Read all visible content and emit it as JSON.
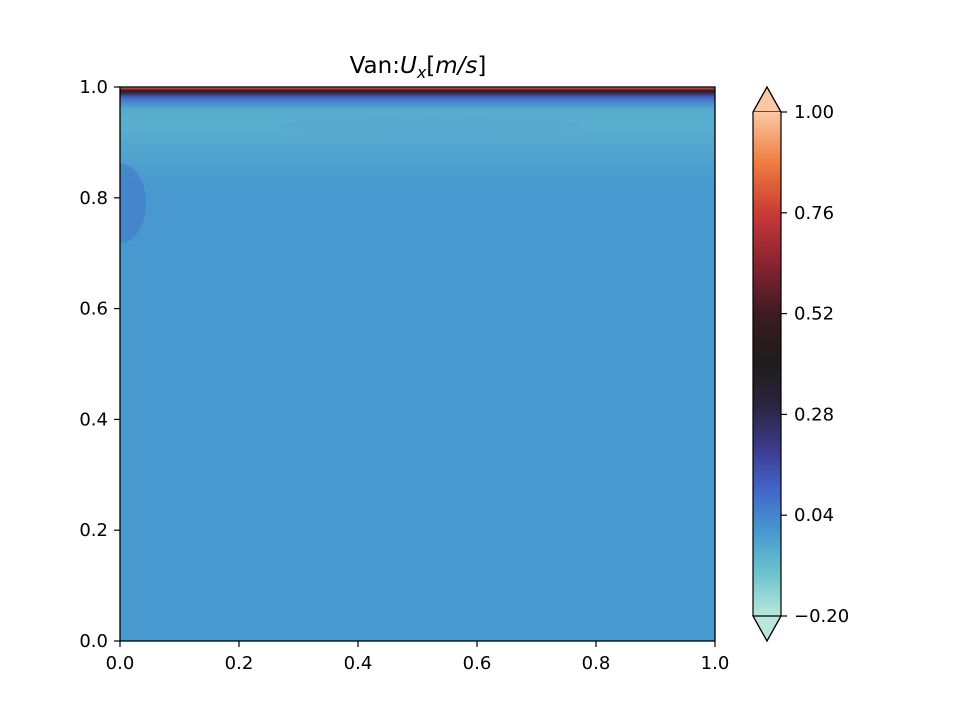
{
  "chart_data": {
    "type": "heatmap",
    "title": {
      "prefix": "Van:",
      "var": "U",
      "sub": "x",
      "units": "[m/s]"
    },
    "xlabel": "",
    "ylabel": "",
    "xlim": [
      0.0,
      1.0
    ],
    "ylim": [
      0.0,
      1.0
    ],
    "x_ticks": [
      "0.0",
      "0.2",
      "0.4",
      "0.6",
      "0.8",
      "1.0"
    ],
    "y_ticks": [
      "0.0",
      "0.2",
      "0.4",
      "0.6",
      "0.8",
      "1.0"
    ],
    "field": {
      "background_value": 0.0,
      "background_color": "#4799cf",
      "boundary_layer": [
        {
          "y": 1.0,
          "value": 0.95
        },
        {
          "y": 0.997,
          "value": 0.7
        },
        {
          "y": 0.993,
          "value": 0.45
        },
        {
          "y": 0.988,
          "value": 0.25
        },
        {
          "y": 0.982,
          "value": 0.12
        },
        {
          "y": 0.975,
          "value": 0.05
        },
        {
          "y": 0.96,
          "value": -0.04
        },
        {
          "y": 0.93,
          "value": -0.05
        },
        {
          "y": 0.87,
          "value": -0.02
        },
        {
          "y": 0.82,
          "value": 0.0
        }
      ],
      "left_wall_bulge": {
        "y": 0.79,
        "value": 0.02
      }
    },
    "colorbar": {
      "min": -0.2,
      "max": 1.0,
      "extend": "both",
      "ticks": [
        "−0.20",
        "0.04",
        "0.28",
        "0.52",
        "0.76",
        "1.00"
      ],
      "tick_values": [
        -0.2,
        0.04,
        0.28,
        0.52,
        0.76,
        1.0
      ],
      "colormap": "icefire",
      "color_stops": [
        {
          "v": -0.2,
          "c": "#b9e7dc"
        },
        {
          "v": -0.1,
          "c": "#6dc3cc"
        },
        {
          "v": 0.0,
          "c": "#4799cf"
        },
        {
          "v": 0.1,
          "c": "#4166cb"
        },
        {
          "v": 0.2,
          "c": "#3d3a8c"
        },
        {
          "v": 0.3,
          "c": "#2a2540"
        },
        {
          "v": 0.4,
          "c": "#1e1b1c"
        },
        {
          "v": 0.52,
          "c": "#3d1b22"
        },
        {
          "v": 0.64,
          "c": "#8b2331"
        },
        {
          "v": 0.76,
          "c": "#c93b36"
        },
        {
          "v": 0.88,
          "c": "#ef7d3f"
        },
        {
          "v": 1.0,
          "c": "#fcc7a4"
        }
      ]
    }
  }
}
